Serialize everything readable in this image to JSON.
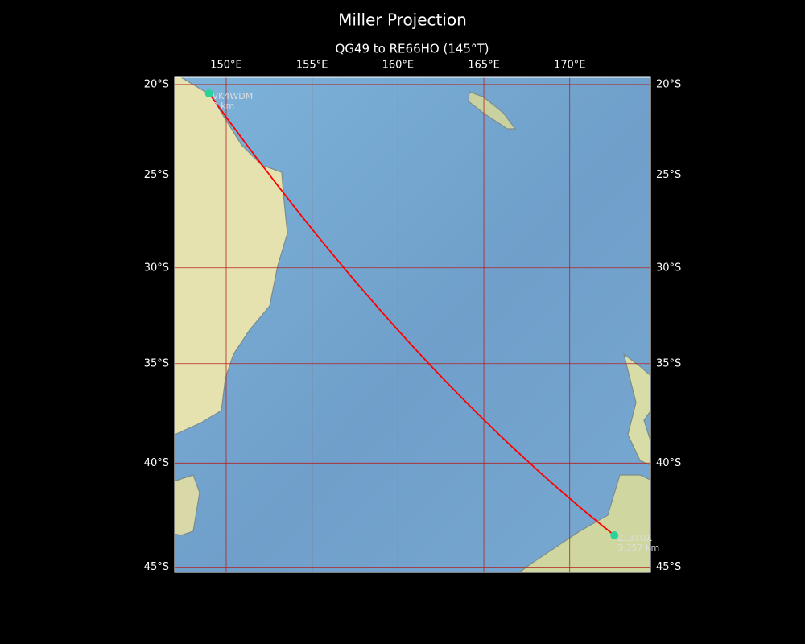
{
  "map": {
    "title": "Miller Projection",
    "subtitle": "QG49 to RE66HO (145°T)",
    "projection": "miller",
    "xlim": [
      147,
      174.7
    ],
    "ylim": [
      -45.25,
      -19.6
    ],
    "xticks": [
      {
        "value": 150,
        "label": "150°E"
      },
      {
        "value": 155,
        "label": "155°E"
      },
      {
        "value": 160,
        "label": "160°E"
      },
      {
        "value": 165,
        "label": "165°E"
      },
      {
        "value": 170,
        "label": "170°E"
      }
    ],
    "yticks": [
      {
        "value": -20,
        "label": "20°S"
      },
      {
        "value": -25,
        "label": "25°S"
      },
      {
        "value": -30,
        "label": "30°S"
      },
      {
        "value": -35,
        "label": "35°S"
      },
      {
        "value": -40,
        "label": "40°S"
      },
      {
        "value": -45,
        "label": "45°S"
      }
    ],
    "grid_color": "#b22222",
    "route_color": "#ff0000",
    "station_color": "#2bd39c",
    "stations": [
      {
        "call": "VK4WDM",
        "distance": "0 km",
        "lon": 149.0,
        "lat": -20.5
      },
      {
        "call": "ZL3TUX",
        "distance": "3,357 km",
        "lon": 172.6,
        "lat": -43.5
      }
    ]
  }
}
